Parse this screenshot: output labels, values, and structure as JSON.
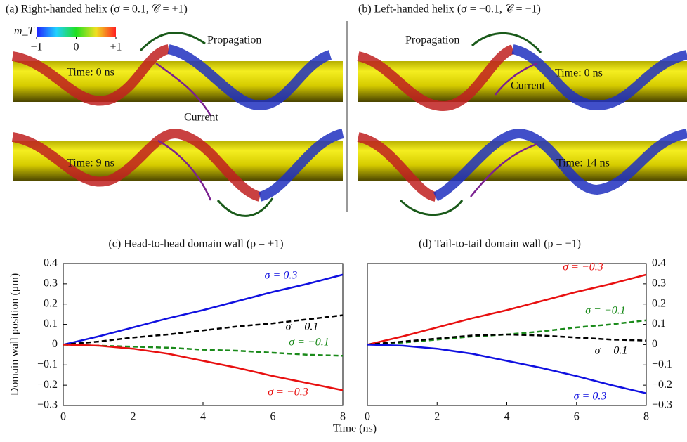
{
  "illustrations": [
    {
      "title": "(a) Right-handed helix (σ = 0.1, 𝒞 = +1)",
      "colorbar": {
        "label": "m_T",
        "ticks": [
          {
            "value": -1,
            "label": "−1"
          },
          0,
          {
            "value": 1,
            "label": "+1"
          }
        ],
        "lim": [
          -1,
          1
        ]
      },
      "propagation": "Propagation",
      "current": "Current",
      "time_top": "Time: 0 ns",
      "time_bottom": "Time: 9 ns"
    },
    {
      "title": "(b) Left-handed helix (σ = −0.1, 𝒞 = −1)",
      "propagation": "Propagation",
      "current": "Current",
      "time_top": "Time: 0 ns",
      "time_bottom": "Time: 14 ns"
    }
  ],
  "chart_data": [
    {
      "type": "line",
      "title": "(c)   Head-to-head domain wall (p = +1)",
      "x_label": "Time (ns)",
      "y_label": "Domain wall position (μm)",
      "y_axis_side": "left",
      "x": [
        0,
        1,
        2,
        3,
        4,
        5,
        6,
        7,
        8
      ],
      "xlim": [
        0,
        8
      ],
      "xticks": [
        0,
        2,
        4,
        6,
        8
      ],
      "ylim": [
        -0.3,
        0.4
      ],
      "yticks": [
        {
          "value": -0.3,
          "label": "−0.3"
        },
        {
          "value": -0.2,
          "label": "−0.2"
        },
        {
          "value": -0.1,
          "label": "−0.1"
        },
        0,
        0.1,
        0.2,
        0.3,
        0.4
      ],
      "series": [
        {
          "name": "σ = 0.3",
          "color": "#1010e0",
          "dashed": false,
          "values": [
            0,
            0.04,
            0.085,
            0.13,
            0.17,
            0.215,
            0.26,
            0.3,
            0.345
          ]
        },
        {
          "name": "σ = 0.1",
          "color": "#000000",
          "dashed": true,
          "values": [
            0,
            0.015,
            0.035,
            0.05,
            0.07,
            0.09,
            0.105,
            0.125,
            0.145
          ]
        },
        {
          "name": "σ = −0.1",
          "color": "#1a8a1a",
          "dashed": true,
          "values": [
            0,
            -0.005,
            -0.01,
            -0.015,
            -0.025,
            -0.03,
            -0.04,
            -0.05,
            -0.055
          ]
        },
        {
          "name": "σ = −0.3",
          "color": "#e81010",
          "dashed": false,
          "values": [
            0,
            -0.005,
            -0.02,
            -0.045,
            -0.08,
            -0.115,
            -0.155,
            -0.19,
            -0.225
          ]
        }
      ]
    },
    {
      "type": "line",
      "title": "(d)   Tail-to-tail domain wall (p = −1)",
      "y_axis_side": "right",
      "x": [
        0,
        1,
        2,
        3,
        4,
        5,
        6,
        7,
        8
      ],
      "xlim": [
        0,
        8
      ],
      "xticks": [
        0,
        2,
        4,
        6,
        8
      ],
      "ylim": [
        -0.3,
        0.4
      ],
      "yticks": [
        {
          "value": -0.3,
          "label": "−0.3"
        },
        {
          "value": -0.2,
          "label": "−0.2"
        },
        {
          "value": -0.1,
          "label": "−0.1"
        },
        0,
        0.1,
        0.2,
        0.3,
        0.4
      ],
      "series": [
        {
          "name": "σ = −0.3",
          "color": "#e81010",
          "dashed": false,
          "values": [
            0,
            0.04,
            0.085,
            0.13,
            0.17,
            0.215,
            0.26,
            0.3,
            0.345
          ]
        },
        {
          "name": "σ = −0.1",
          "color": "#1a8a1a",
          "dashed": true,
          "values": [
            0,
            0.01,
            0.025,
            0.04,
            0.05,
            0.065,
            0.085,
            0.1,
            0.12
          ]
        },
        {
          "name": "σ = 0.1",
          "color": "#000000",
          "dashed": true,
          "values": [
            0,
            0.015,
            0.03,
            0.045,
            0.05,
            0.045,
            0.035,
            0.025,
            0.02
          ]
        },
        {
          "name": "σ = 0.3",
          "color": "#1010e0",
          "dashed": false,
          "values": [
            0,
            -0.005,
            -0.02,
            -0.045,
            -0.08,
            -0.115,
            -0.155,
            -0.2,
            -0.24
          ]
        }
      ]
    }
  ]
}
